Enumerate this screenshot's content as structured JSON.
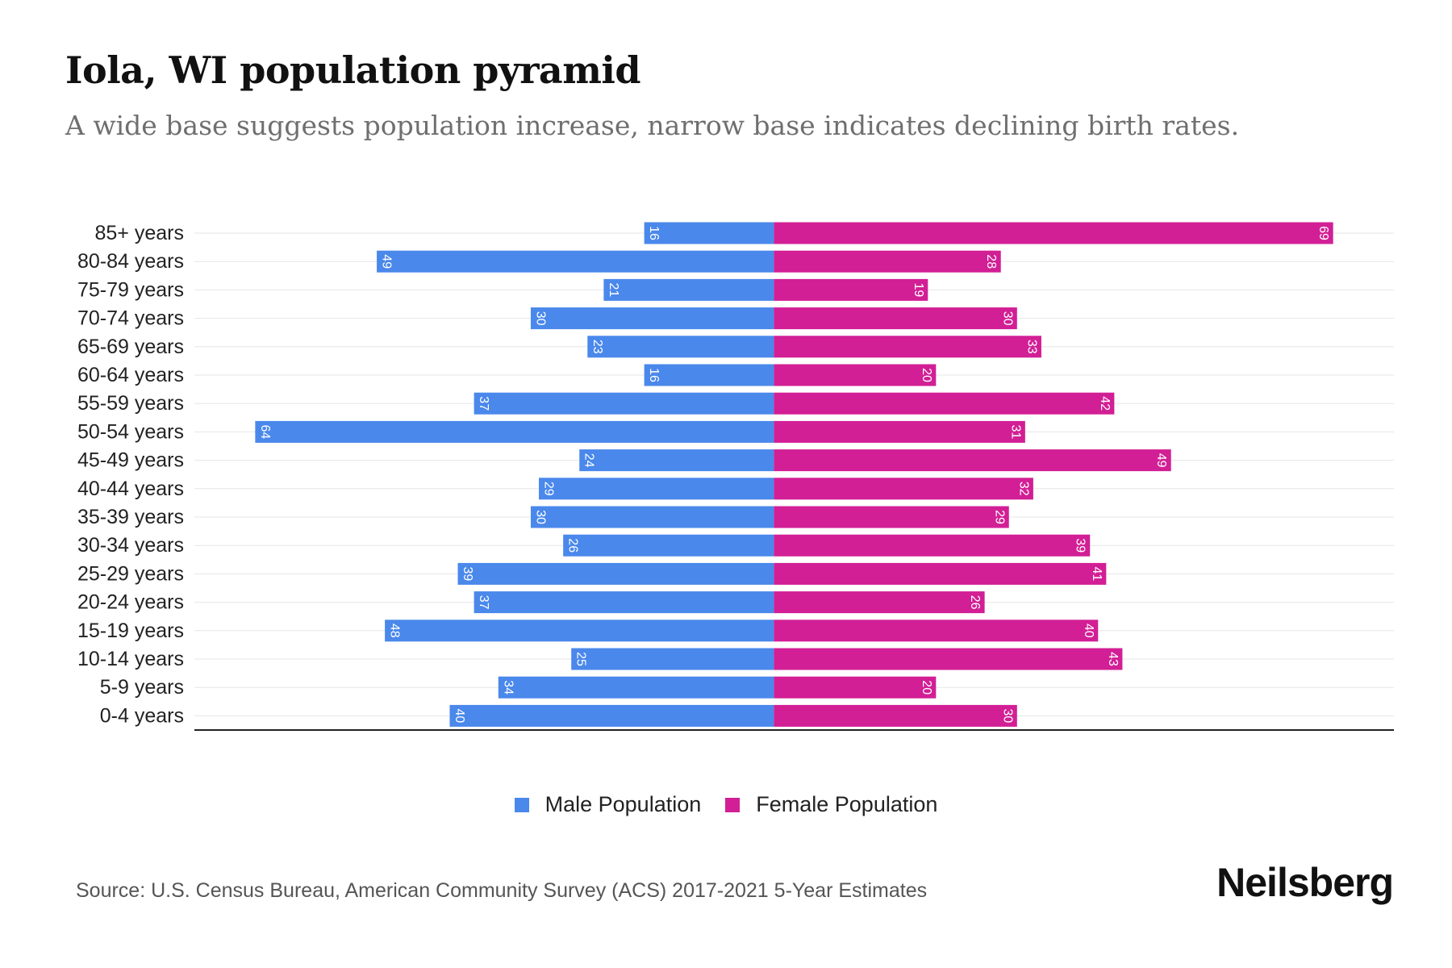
{
  "title": "Iola, WI population pyramid",
  "subtitle": "A wide base suggests population increase, narrow base indicates declining birth rates.",
  "source": "Source: U.S. Census Bureau, American Community Survey (ACS) 2017-2021 5-Year Estimates",
  "brand": "Neilsberg",
  "colors": {
    "male": "#4a88eb",
    "female": "#d21f95",
    "grid": "#e6e6e6",
    "axis": "#222222"
  },
  "chart_data": {
    "type": "bar",
    "orientation": "horizontal-diverging",
    "title": "Iola, WI population pyramid",
    "categories": [
      "85+ years",
      "80-84 years",
      "75-79 years",
      "70-74 years",
      "65-69 years",
      "60-64 years",
      "55-59 years",
      "50-54 years",
      "45-49 years",
      "40-44 years",
      "35-39 years",
      "30-34 years",
      "25-29 years",
      "20-24 years",
      "15-19 years",
      "10-14 years",
      "5-9 years",
      "0-4 years"
    ],
    "series": [
      {
        "name": "Male Population",
        "values": [
          16,
          49,
          21,
          30,
          23,
          16,
          37,
          64,
          24,
          29,
          30,
          26,
          39,
          37,
          48,
          25,
          34,
          40
        ]
      },
      {
        "name": "Female Population",
        "values": [
          69,
          28,
          19,
          30,
          33,
          20,
          42,
          31,
          49,
          32,
          29,
          39,
          41,
          26,
          40,
          43,
          20,
          30
        ]
      }
    ],
    "xlim": [
      -71.5,
      76.5
    ],
    "legend": "bottom-center"
  }
}
